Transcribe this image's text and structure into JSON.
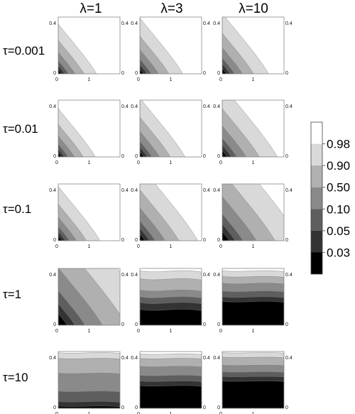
{
  "chart_data": {
    "type": "heatmap",
    "title": "",
    "xlabel": "",
    "ylabel": "",
    "columns": [
      {
        "label": "λ=1",
        "lambda": 1
      },
      {
        "label": "λ=3",
        "lambda": 3
      },
      {
        "label": "λ=10",
        "lambda": 10
      }
    ],
    "rows": [
      {
        "label": "τ=0.001",
        "tau": 0.001
      },
      {
        "label": "τ=0.01",
        "tau": 0.01
      },
      {
        "label": "τ=0.1",
        "tau": 0.1
      },
      {
        "label": "τ=1",
        "tau": 1
      },
      {
        "label": "τ=10",
        "tau": 10
      }
    ],
    "xlim": [
      0,
      2
    ],
    "ylim": [
      0,
      0.5
    ],
    "x_tick_labels": [
      "0",
      "1"
    ],
    "y_tick_labels": [
      "0",
      "0.4"
    ],
    "legend": {
      "placement": "right",
      "levels": [
        "0.98",
        "0.90",
        "0.50",
        "0.10",
        "0.05",
        "0.03"
      ],
      "fill_colors": [
        "#ffffff",
        "#d9d9d9",
        "#b0b0b0",
        "#8a8a8a",
        "#5e5e5e",
        "#333333",
        "#000000"
      ]
    },
    "panels": [
      {
        "row": 0,
        "col": 0,
        "style": "diag",
        "t": 0.66
      },
      {
        "row": 0,
        "col": 1,
        "style": "diag",
        "t": 0.74
      },
      {
        "row": 0,
        "col": 2,
        "style": "diag",
        "t": 0.8
      },
      {
        "row": 1,
        "col": 0,
        "style": "diag",
        "t": 0.64
      },
      {
        "row": 1,
        "col": 1,
        "style": "diag",
        "t": 0.78
      },
      {
        "row": 1,
        "col": 2,
        "style": "diag",
        "t": 0.95
      },
      {
        "row": 2,
        "col": 0,
        "style": "diag",
        "t": 0.72
      },
      {
        "row": 2,
        "col": 1,
        "style": "diag",
        "t": 1.0
      },
      {
        "row": 2,
        "col": 2,
        "style": "diag",
        "t": 1.35
      },
      {
        "row": 3,
        "col": 0,
        "style": "diag",
        "t": 1.75
      },
      {
        "row": 3,
        "col": 1,
        "style": "band",
        "boundaries": [
          0.96,
          0.82,
          0.62,
          0.5,
          0.4,
          0.28
        ],
        "wave": 1.0
      },
      {
        "row": 3,
        "col": 2,
        "style": "band",
        "boundaries": [
          0.96,
          0.86,
          0.74,
          0.6,
          0.5,
          0.42
        ],
        "wave": 0.6
      },
      {
        "row": 4,
        "col": 0,
        "style": "band",
        "boundaries": [
          0.98,
          0.88,
          0.62,
          0.3,
          0.12,
          0.04
        ],
        "wave": 0.5
      },
      {
        "row": 4,
        "col": 1,
        "style": "band",
        "boundaries": [
          0.96,
          0.88,
          0.74,
          0.58,
          0.48,
          0.4
        ],
        "wave": 0.5
      },
      {
        "row": 4,
        "col": 2,
        "style": "band",
        "boundaries": [
          0.98,
          0.9,
          0.76,
          0.64,
          0.56,
          0.48
        ],
        "wave": 0.3
      }
    ]
  }
}
